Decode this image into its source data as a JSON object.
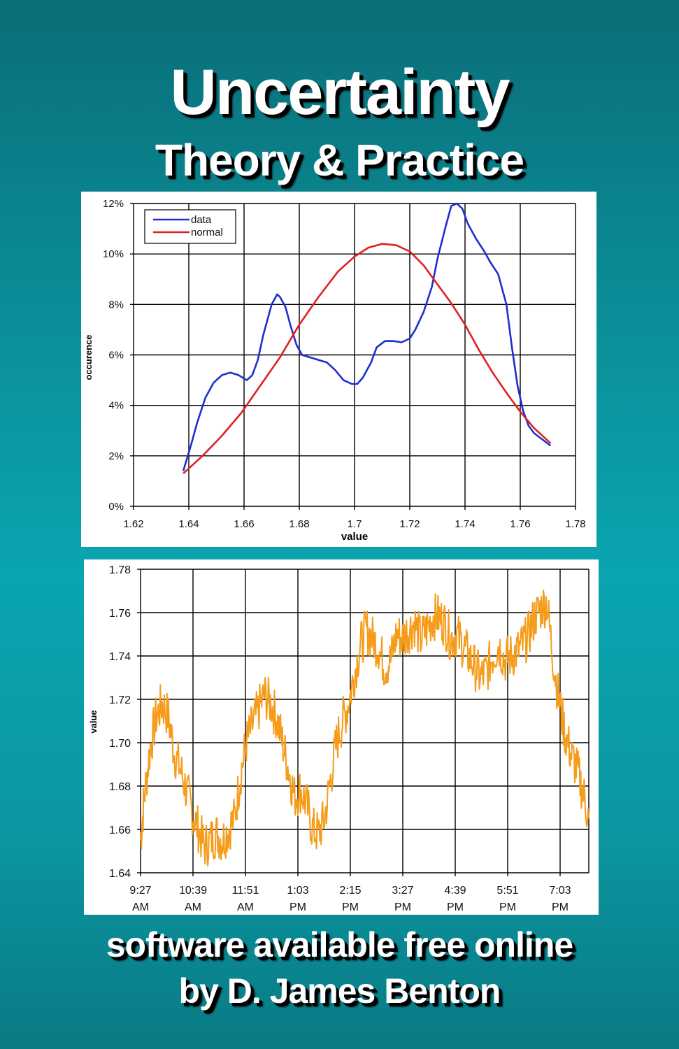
{
  "cover": {
    "title": "Uncertainty",
    "subtitle": "Theory & Practice",
    "tagline": "software available free online",
    "author": "by D. James Benton"
  },
  "chart_data": [
    {
      "type": "line",
      "xlabel": "value",
      "ylabel": "occurence",
      "xlim": [
        1.62,
        1.78
      ],
      "ylim": [
        0,
        12
      ],
      "x_ticks": [
        "1.62",
        "1.64",
        "1.66",
        "1.68",
        "1.7",
        "1.72",
        "1.74",
        "1.76",
        "1.78"
      ],
      "y_ticks": [
        "0%",
        "2%",
        "4%",
        "6%",
        "8%",
        "10%",
        "12%"
      ],
      "grid": true,
      "legend": "top-left",
      "series": [
        {
          "name": "data",
          "color": "#1f2fcf",
          "x": [
            1.638,
            1.641,
            1.643,
            1.646,
            1.649,
            1.652,
            1.655,
            1.658,
            1.661,
            1.663,
            1.665,
            1.667,
            1.67,
            1.672,
            1.673,
            1.675,
            1.677,
            1.679,
            1.681,
            1.684,
            1.687,
            1.69,
            1.693,
            1.696,
            1.699,
            1.701,
            1.703,
            1.706,
            1.708,
            1.711,
            1.714,
            1.717,
            1.72,
            1.722,
            1.725,
            1.728,
            1.73,
            1.733,
            1.735,
            1.737,
            1.739,
            1.741,
            1.744,
            1.747,
            1.749,
            1.752,
            1.755,
            1.757,
            1.759,
            1.761,
            1.763,
            1.765,
            1.768,
            1.771
          ],
          "y": [
            1.4,
            2.5,
            3.3,
            4.3,
            4.9,
            5.2,
            5.3,
            5.2,
            5.0,
            5.2,
            5.8,
            6.8,
            8.0,
            8.4,
            8.3,
            7.9,
            7.1,
            6.4,
            6.0,
            5.9,
            5.8,
            5.7,
            5.4,
            5.0,
            4.85,
            4.85,
            5.1,
            5.7,
            6.3,
            6.55,
            6.55,
            6.5,
            6.65,
            7.0,
            7.7,
            8.7,
            9.8,
            11.1,
            11.9,
            12.0,
            11.8,
            11.2,
            10.6,
            10.1,
            9.7,
            9.2,
            8.0,
            6.3,
            4.8,
            3.8,
            3.2,
            2.9,
            2.65,
            2.4
          ]
        },
        {
          "name": "normal",
          "color": "#e02020",
          "x": [
            1.638,
            1.645,
            1.652,
            1.659,
            1.666,
            1.673,
            1.68,
            1.687,
            1.694,
            1.7,
            1.705,
            1.71,
            1.715,
            1.72,
            1.725,
            1.73,
            1.735,
            1.74,
            1.745,
            1.75,
            1.755,
            1.76,
            1.765,
            1.771
          ],
          "y": [
            1.3,
            2.0,
            2.8,
            3.7,
            4.8,
            5.9,
            7.2,
            8.3,
            9.3,
            9.9,
            10.25,
            10.4,
            10.35,
            10.1,
            9.55,
            8.8,
            8.05,
            7.2,
            6.2,
            5.3,
            4.5,
            3.75,
            3.1,
            2.5
          ]
        }
      ]
    },
    {
      "type": "line",
      "xlabel": "",
      "ylabel": "value",
      "ylim": [
        1.64,
        1.78
      ],
      "x_ticks": [
        [
          "9:27",
          "AM"
        ],
        [
          "10:39",
          "AM"
        ],
        [
          "11:51",
          "AM"
        ],
        [
          "1:03",
          "PM"
        ],
        [
          "2:15",
          "PM"
        ],
        [
          "3:27",
          "PM"
        ],
        [
          "4:39",
          "PM"
        ],
        [
          "5:51",
          "PM"
        ],
        [
          "7:03",
          "PM"
        ]
      ],
      "y_ticks": [
        "1.64",
        "1.66",
        "1.68",
        "1.70",
        "1.72",
        "1.74",
        "1.76",
        "1.78"
      ],
      "grid": true,
      "series": [
        {
          "color": "#f59c1a",
          "x_minutes": [
            567,
            572,
            580,
            588,
            596,
            604,
            612,
            620,
            628,
            636,
            644,
            652,
            660,
            668,
            676,
            684,
            692,
            700,
            708,
            716,
            724,
            732,
            740,
            748,
            756,
            764,
            772,
            780,
            788,
            796,
            804,
            812,
            820,
            828,
            836,
            844,
            852,
            860,
            868,
            876,
            884,
            892,
            900,
            908,
            916,
            924,
            932,
            940,
            948,
            956,
            964,
            972,
            980,
            988,
            996,
            1004,
            1012,
            1020,
            1028,
            1036,
            1044,
            1052,
            1060,
            1068,
            1076,
            1084,
            1092,
            1100,
            1108,
            1116,
            1124,
            1132,
            1140,
            1148,
            1156,
            1164
          ],
          "values": [
            1.655,
            1.675,
            1.698,
            1.712,
            1.718,
            1.712,
            1.695,
            1.688,
            1.678,
            1.668,
            1.66,
            1.652,
            1.655,
            1.658,
            1.655,
            1.66,
            1.665,
            1.685,
            1.7,
            1.708,
            1.715,
            1.722,
            1.718,
            1.712,
            1.7,
            1.688,
            1.675,
            1.678,
            1.672,
            1.66,
            1.658,
            1.665,
            1.683,
            1.7,
            1.71,
            1.718,
            1.732,
            1.745,
            1.752,
            1.748,
            1.744,
            1.735,
            1.738,
            1.75,
            1.748,
            1.752,
            1.755,
            1.748,
            1.752,
            1.758,
            1.758,
            1.755,
            1.748,
            1.75,
            1.745,
            1.74,
            1.735,
            1.73,
            1.733,
            1.74,
            1.745,
            1.738,
            1.74,
            1.742,
            1.745,
            1.75,
            1.758,
            1.762,
            1.765,
            1.74,
            1.72,
            1.705,
            1.695,
            1.688,
            1.678,
            1.665
          ]
        }
      ]
    }
  ]
}
